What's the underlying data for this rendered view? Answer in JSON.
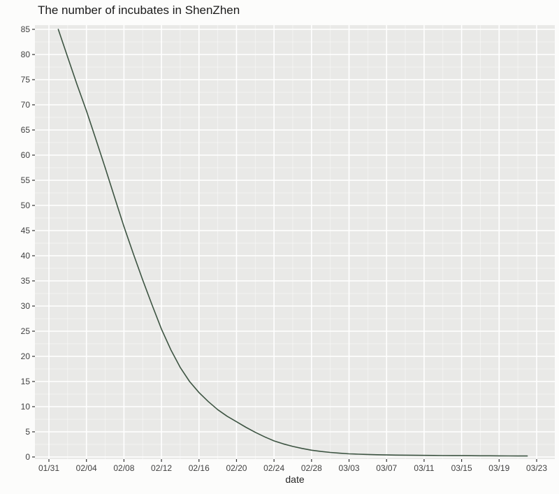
{
  "chart_data": {
    "type": "line",
    "title": "The number of incubates in ShenZhen",
    "xlabel": "date",
    "ylabel": "",
    "legend_position": "none",
    "grid": "major and minor white gridlines on gray panel (ggplot style)",
    "panel_background": "#e9e9e7",
    "gridline_color": "#ffffff",
    "tick_color": "#333333",
    "tick_label_color": "#404040",
    "x_tick_labels": [
      "01/31",
      "02/04",
      "02/08",
      "02/12",
      "02/16",
      "02/20",
      "02/24",
      "02/28",
      "03/03",
      "03/07",
      "03/11",
      "03/15",
      "03/19",
      "03/23"
    ],
    "y_ticks": [
      0,
      5,
      10,
      15,
      20,
      25,
      30,
      35,
      40,
      45,
      50,
      55,
      60,
      65,
      70,
      75,
      80,
      85
    ],
    "ylim": [
      -0.4,
      85.8
    ],
    "xlim_dates": [
      "01/31",
      "03/23"
    ],
    "series": [
      {
        "name": "incubates",
        "color": "#3d5442",
        "x": [
          "02/01",
          "02/02",
          "02/03",
          "02/04",
          "02/05",
          "02/06",
          "02/07",
          "02/08",
          "02/09",
          "02/10",
          "02/11",
          "02/12",
          "02/13",
          "02/14",
          "02/15",
          "02/16",
          "02/17",
          "02/18",
          "02/19",
          "02/20",
          "02/21",
          "02/22",
          "02/23",
          "02/24",
          "02/25",
          "02/26",
          "02/27",
          "02/28",
          "02/29",
          "03/01",
          "03/02",
          "03/03",
          "03/04",
          "03/05",
          "03/06",
          "03/07",
          "03/08",
          "03/09",
          "03/10",
          "03/11",
          "03/12",
          "03/13",
          "03/14",
          "03/15",
          "03/16",
          "03/17",
          "03/18",
          "03/19",
          "03/20",
          "03/21",
          "03/22"
        ],
        "values": [
          85,
          79.5,
          74,
          68.8,
          63.2,
          57.5,
          51.6,
          45.8,
          40.4,
          35.2,
          30.2,
          25.4,
          21.3,
          17.8,
          15,
          12.8,
          11,
          9.4,
          8.1,
          7,
          5.9,
          4.9,
          4,
          3.2,
          2.6,
          2.1,
          1.7,
          1.35,
          1.1,
          0.9,
          0.75,
          0.62,
          0.55,
          0.5,
          0.45,
          0.4,
          0.38,
          0.36,
          0.34,
          0.32,
          0.3,
          0.28,
          0.27,
          0.26,
          0.25,
          0.24,
          0.23,
          0.22,
          0.21,
          0.2,
          0.2
        ]
      }
    ]
  }
}
